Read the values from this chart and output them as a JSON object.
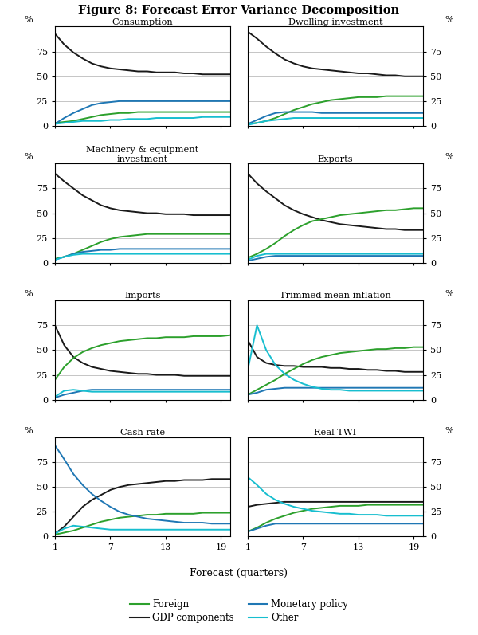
{
  "title": "Figure 8: Forecast Error Variance Decomposition",
  "xlabel": "Forecast (quarters)",
  "panels": [
    {
      "title": "Consumption",
      "gdp": [
        93,
        82,
        74,
        68,
        63,
        60,
        58,
        57,
        56,
        55,
        55,
        54,
        54,
        54,
        53,
        53,
        52,
        52,
        52,
        52
      ],
      "foreign": [
        3,
        4,
        5,
        7,
        9,
        11,
        12,
        13,
        13,
        14,
        14,
        14,
        14,
        14,
        14,
        14,
        14,
        14,
        14,
        14
      ],
      "monetary": [
        2,
        8,
        13,
        17,
        21,
        23,
        24,
        25,
        25,
        25,
        25,
        25,
        25,
        25,
        25,
        25,
        25,
        25,
        25,
        25
      ],
      "other": [
        2,
        3,
        4,
        5,
        5,
        5,
        6,
        6,
        7,
        7,
        7,
        8,
        8,
        8,
        8,
        8,
        9,
        9,
        9,
        9
      ]
    },
    {
      "title": "Dwelling investment",
      "gdp": [
        95,
        88,
        80,
        73,
        67,
        63,
        60,
        58,
        57,
        56,
        55,
        54,
        53,
        53,
        52,
        51,
        51,
        50,
        50,
        50
      ],
      "foreign": [
        2,
        3,
        5,
        8,
        12,
        16,
        19,
        22,
        24,
        26,
        27,
        28,
        29,
        29,
        29,
        30,
        30,
        30,
        30,
        30
      ],
      "monetary": [
        2,
        6,
        10,
        13,
        14,
        14,
        14,
        14,
        13,
        13,
        13,
        13,
        13,
        13,
        13,
        13,
        13,
        13,
        13,
        13
      ],
      "other": [
        1,
        3,
        5,
        6,
        7,
        8,
        8,
        8,
        8,
        8,
        8,
        8,
        8,
        8,
        8,
        8,
        8,
        8,
        8,
        8
      ]
    },
    {
      "title": "Machinery & equipment\ninvestment",
      "gdp": [
        90,
        82,
        75,
        68,
        63,
        58,
        55,
        53,
        52,
        51,
        50,
        50,
        49,
        49,
        49,
        48,
        48,
        48,
        48,
        48
      ],
      "foreign": [
        4,
        6,
        9,
        13,
        17,
        21,
        24,
        26,
        27,
        28,
        29,
        29,
        29,
        29,
        29,
        29,
        29,
        29,
        29,
        29
      ],
      "monetary": [
        3,
        6,
        9,
        11,
        12,
        13,
        13,
        14,
        14,
        14,
        14,
        14,
        14,
        14,
        14,
        14,
        14,
        14,
        14,
        14
      ],
      "other": [
        3,
        6,
        8,
        9,
        9,
        9,
        9,
        9,
        9,
        9,
        9,
        9,
        9,
        9,
        9,
        9,
        9,
        9,
        9,
        9
      ]
    },
    {
      "title": "Exports",
      "gdp": [
        90,
        80,
        72,
        65,
        58,
        53,
        49,
        46,
        43,
        41,
        39,
        38,
        37,
        36,
        35,
        34,
        34,
        33,
        33,
        33
      ],
      "foreign": [
        5,
        9,
        14,
        20,
        27,
        33,
        38,
        42,
        44,
        46,
        48,
        49,
        50,
        51,
        52,
        53,
        53,
        54,
        55,
        55
      ],
      "monetary": [
        2,
        4,
        6,
        7,
        7,
        7,
        7,
        7,
        7,
        7,
        7,
        7,
        7,
        7,
        7,
        7,
        7,
        7,
        7,
        7
      ],
      "other": [
        3,
        7,
        9,
        9,
        9,
        9,
        9,
        9,
        9,
        9,
        9,
        9,
        9,
        9,
        9,
        9,
        9,
        9,
        9,
        9
      ]
    },
    {
      "title": "Imports",
      "gdp": [
        75,
        55,
        43,
        37,
        33,
        31,
        29,
        28,
        27,
        26,
        26,
        25,
        25,
        25,
        24,
        24,
        24,
        24,
        24,
        24
      ],
      "foreign": [
        20,
        33,
        42,
        48,
        52,
        55,
        57,
        59,
        60,
        61,
        62,
        62,
        63,
        63,
        63,
        64,
        64,
        64,
        64,
        65
      ],
      "monetary": [
        2,
        5,
        7,
        9,
        10,
        10,
        10,
        10,
        10,
        10,
        10,
        10,
        10,
        10,
        10,
        10,
        10,
        10,
        10,
        10
      ],
      "other": [
        3,
        9,
        10,
        9,
        8,
        8,
        8,
        8,
        8,
        8,
        8,
        8,
        8,
        8,
        8,
        8,
        8,
        8,
        8,
        8
      ]
    },
    {
      "title": "Trimmed mean inflation",
      "gdp": [
        60,
        43,
        37,
        35,
        34,
        34,
        33,
        33,
        33,
        32,
        32,
        31,
        31,
        30,
        30,
        29,
        29,
        28,
        28,
        28
      ],
      "foreign": [
        5,
        10,
        15,
        20,
        26,
        31,
        36,
        40,
        43,
        45,
        47,
        48,
        49,
        50,
        51,
        51,
        52,
        52,
        53,
        53
      ],
      "monetary": [
        5,
        7,
        10,
        11,
        12,
        12,
        12,
        12,
        12,
        12,
        12,
        12,
        12,
        12,
        12,
        12,
        12,
        12,
        12,
        12
      ],
      "other": [
        30,
        75,
        50,
        35,
        26,
        20,
        16,
        13,
        11,
        10,
        10,
        9,
        9,
        9,
        9,
        9,
        9,
        9,
        9,
        9
      ]
    },
    {
      "title": "Cash rate",
      "gdp": [
        3,
        10,
        20,
        30,
        37,
        42,
        47,
        50,
        52,
        53,
        54,
        55,
        56,
        56,
        57,
        57,
        57,
        58,
        58,
        58
      ],
      "foreign": [
        2,
        4,
        6,
        9,
        12,
        15,
        17,
        19,
        20,
        21,
        22,
        22,
        23,
        23,
        23,
        23,
        24,
        24,
        24,
        24
      ],
      "monetary": [
        92,
        78,
        63,
        52,
        43,
        36,
        30,
        25,
        22,
        20,
        18,
        17,
        16,
        15,
        14,
        14,
        14,
        13,
        13,
        13
      ],
      "other": [
        3,
        8,
        11,
        10,
        9,
        8,
        7,
        7,
        7,
        7,
        7,
        7,
        7,
        7,
        7,
        7,
        7,
        7,
        7,
        7
      ]
    },
    {
      "title": "Real TWI",
      "gdp": [
        30,
        32,
        33,
        34,
        35,
        35,
        35,
        35,
        35,
        35,
        35,
        35,
        35,
        35,
        35,
        35,
        35,
        35,
        35,
        35
      ],
      "foreign": [
        5,
        9,
        14,
        18,
        21,
        24,
        26,
        28,
        29,
        30,
        31,
        31,
        31,
        32,
        32,
        32,
        32,
        32,
        32,
        32
      ],
      "monetary": [
        5,
        8,
        11,
        13,
        13,
        13,
        13,
        13,
        13,
        13,
        13,
        13,
        13,
        13,
        13,
        13,
        13,
        13,
        13,
        13
      ],
      "other": [
        60,
        52,
        43,
        37,
        33,
        30,
        28,
        26,
        25,
        24,
        23,
        23,
        22,
        22,
        22,
        21,
        21,
        21,
        21,
        21
      ]
    }
  ],
  "colors": {
    "gdp": "#1a1a1a",
    "foreign": "#2ca02c",
    "monetary": "#1f77b4",
    "other": "#17becf"
  },
  "yticks": [
    0,
    25,
    50,
    75
  ],
  "xticks": [
    1,
    7,
    13,
    19
  ],
  "xlim": [
    1,
    20
  ],
  "ylim": [
    0,
    100
  ]
}
